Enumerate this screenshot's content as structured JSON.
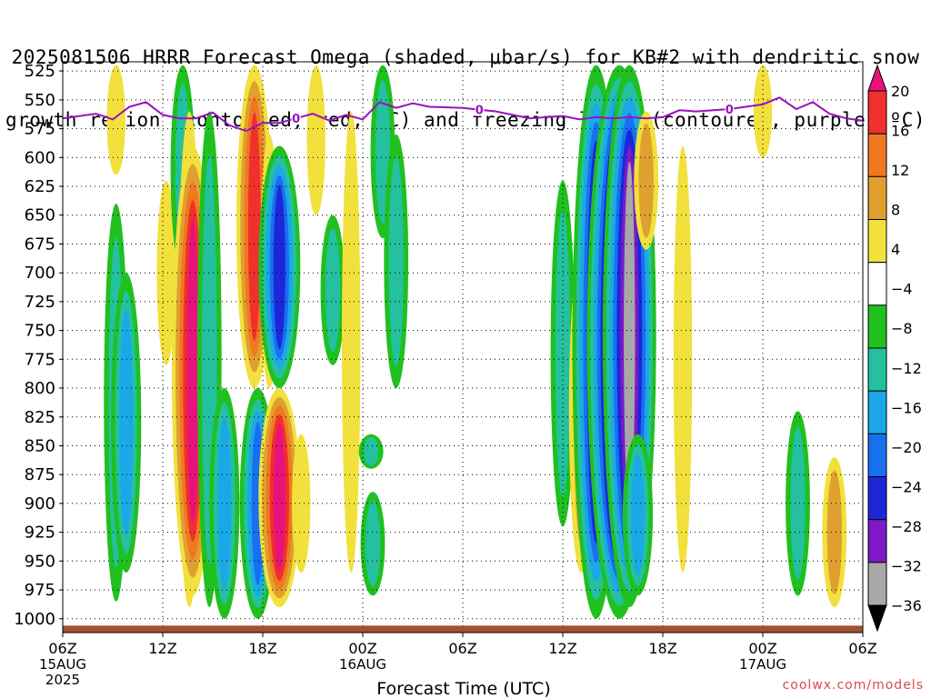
{
  "title_line1": "2025081506 HRRR Forecast Omega (shaded, μbar/s) for KB#2 with dendritic snow",
  "title_line2": "growth region (contoured, red, ºC) and freezing level (contoured, purple, ºC)",
  "attribution": "coolwx.com/models",
  "chart_data": {
    "type": "heatmap",
    "title": "2025081506 HRRR Forecast Omega (shaded, μbar/s) for KB#2 with dendritic snow growth region (contoured, red, ºC) and freezing level (contoured, purple, ºC)",
    "xlabel": "Forecast Time (UTC)",
    "ylabel": "",
    "x_ticks": [
      {
        "label": "06Z",
        "hour": 0,
        "date": "15AUG",
        "year": "2025"
      },
      {
        "label": "12Z",
        "hour": 6
      },
      {
        "label": "18Z",
        "hour": 12
      },
      {
        "label": "00Z",
        "hour": 18,
        "date": "16AUG"
      },
      {
        "label": "06Z",
        "hour": 24
      },
      {
        "label": "12Z",
        "hour": 30
      },
      {
        "label": "18Z",
        "hour": 36
      },
      {
        "label": "00Z",
        "hour": 42,
        "date": "17AUG"
      },
      {
        "label": "06Z",
        "hour": 48
      }
    ],
    "xlim": [
      0,
      48
    ],
    "y_ticks": [
      525,
      550,
      575,
      600,
      625,
      650,
      675,
      700,
      725,
      750,
      775,
      800,
      825,
      850,
      875,
      900,
      925,
      950,
      975,
      1000
    ],
    "ylim": [
      1012,
      517
    ],
    "y_inverted": true,
    "grid": true,
    "colorbar": {
      "levels": [
        20,
        16,
        12,
        8,
        4,
        -4,
        -8,
        -12,
        -16,
        -20,
        -24,
        -28,
        -32,
        -36
      ],
      "colors": [
        "#e8127c",
        "#f0302c",
        "#f07820",
        "#e0a030",
        "#f2e03c",
        "#ffffff",
        "#20c020",
        "#24c0a0",
        "#1aa8e8",
        "#1870f0",
        "#1c28d8",
        "#8018c8",
        "#a8a8a8",
        "#000000"
      ],
      "labels": [
        "20",
        "16",
        "12",
        "8",
        "4",
        "−4",
        "−8",
        "−12",
        "−16",
        "−20",
        "−24",
        "−28",
        "−32",
        "−36"
      ]
    },
    "freezing_level": {
      "label": "0",
      "color": "#9a10c0",
      "hours": [
        0,
        2,
        3,
        4,
        5,
        6,
        7,
        8,
        9,
        10,
        11,
        12,
        13,
        14,
        15,
        16,
        17,
        18,
        19,
        20,
        21,
        22,
        24,
        26,
        28,
        30,
        31,
        32,
        33,
        34,
        35,
        36,
        37,
        38,
        40,
        42,
        43,
        44,
        45,
        46,
        47,
        48
      ],
      "pressure": [
        566,
        562,
        567,
        556,
        552,
        563,
        566,
        566,
        561,
        572,
        577,
        570,
        570,
        566,
        562,
        568,
        563,
        567,
        552,
        557,
        553,
        556,
        557,
        560,
        566,
        564,
        567,
        565,
        566,
        565,
        566,
        565,
        559,
        560,
        558,
        554,
        548,
        558,
        552,
        562,
        566,
        568
      ],
      "label_hours": [
        14,
        25,
        40
      ]
    },
    "omega_features": [
      {
        "hour": 3.2,
        "p": [
          520,
          615
        ],
        "value": 6
      },
      {
        "hour": 3.2,
        "p": [
          640,
          985
        ],
        "value": -8
      },
      {
        "hour": 3.8,
        "p": [
          700,
          960
        ],
        "value": -12
      },
      {
        "hour": 6.2,
        "p": [
          620,
          780
        ],
        "value": 6
      },
      {
        "hour": 7.2,
        "p": [
          520,
          700
        ],
        "value": -8
      },
      {
        "hour": 7.6,
        "p": [
          560,
          990
        ],
        "value": 10
      },
      {
        "hour": 7.8,
        "p": [
          590,
          980
        ],
        "value": 20
      },
      {
        "hour": 8.8,
        "p": [
          560,
          990
        ],
        "value": -10
      },
      {
        "hour": 9.7,
        "p": [
          800,
          1000
        ],
        "value": -14
      },
      {
        "hour": 11.5,
        "p": [
          520,
          800
        ],
        "value": 18
      },
      {
        "hour": 11.7,
        "p": [
          800,
          1000
        ],
        "value": -16
      },
      {
        "hour": 12.4,
        "p": [
          580,
          800
        ],
        "value": 6
      },
      {
        "hour": 13.0,
        "p": [
          590,
          800
        ],
        "value": -20
      },
      {
        "hour": 13.0,
        "p": [
          800,
          990
        ],
        "value": 20
      },
      {
        "hour": 14.3,
        "p": [
          840,
          960
        ],
        "value": 6
      },
      {
        "hour": 15.2,
        "p": [
          520,
          650
        ],
        "value": 6
      },
      {
        "hour": 16.2,
        "p": [
          650,
          780
        ],
        "value": -8
      },
      {
        "hour": 17.3,
        "p": [
          560,
          960
        ],
        "value": 6
      },
      {
        "hour": 18.5,
        "p": [
          840,
          870
        ],
        "value": -8
      },
      {
        "hour": 18.6,
        "p": [
          890,
          980
        ],
        "value": -8
      },
      {
        "hour": 19.2,
        "p": [
          520,
          670
        ],
        "value": -10
      },
      {
        "hour": 20.0,
        "p": [
          580,
          800
        ],
        "value": -8
      },
      {
        "hour": 30.0,
        "p": [
          620,
          920
        ],
        "value": -8
      },
      {
        "hour": 31.1,
        "p": [
          680,
          960
        ],
        "value": 8
      },
      {
        "hour": 32.0,
        "p": [
          520,
          1000
        ],
        "value": -24
      },
      {
        "hour": 33.4,
        "p": [
          520,
          1000
        ],
        "value": -36
      },
      {
        "hour": 34.0,
        "p": [
          520,
          990
        ],
        "value": -28
      },
      {
        "hour": 35.0,
        "p": [
          560,
          680
        ],
        "value": 8
      },
      {
        "hour": 34.5,
        "p": [
          840,
          980
        ],
        "value": -12
      },
      {
        "hour": 37.2,
        "p": [
          590,
          960
        ],
        "value": 5
      },
      {
        "hour": 42.0,
        "p": [
          520,
          600
        ],
        "value": 5
      },
      {
        "hour": 44.1,
        "p": [
          820,
          980
        ],
        "value": -8
      },
      {
        "hour": 46.3,
        "p": [
          860,
          990
        ],
        "value": 10
      }
    ],
    "surface": {
      "color": "#a0522d",
      "pressure": [
        1012,
        1006
      ]
    }
  }
}
